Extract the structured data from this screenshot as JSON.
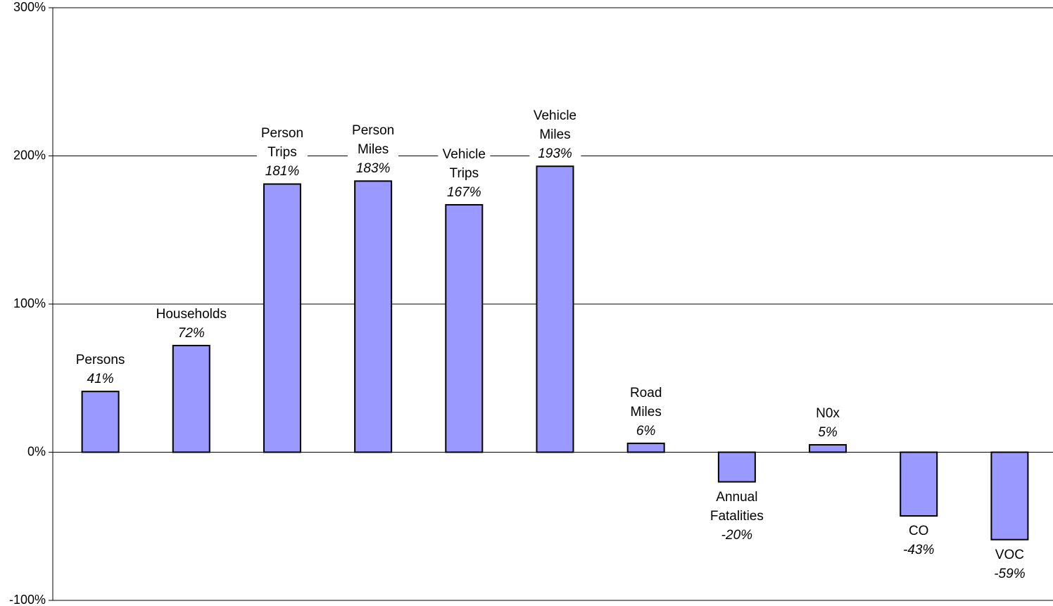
{
  "chart_data": {
    "type": "bar",
    "categories": [
      "Persons",
      "Households",
      "Person\nTrips",
      "Person\nMiles",
      "Vehicle\nTrips",
      "Vehicle\nMiles",
      "Road\nMiles",
      "Annual\nFatalities",
      "N0x",
      "CO",
      "VOC"
    ],
    "values": [
      41,
      72,
      181,
      183,
      167,
      193,
      6,
      -20,
      5,
      -43,
      -59
    ],
    "value_labels": [
      "41%",
      "72%",
      "181%",
      "183%",
      "167%",
      "193%",
      "6%",
      "-20%",
      "5%",
      "-43%",
      "-59%"
    ],
    "color": "#9999ff",
    "ylim": [
      -100,
      300
    ],
    "yticks": [
      {
        "value": -100,
        "label": "-100%"
      },
      {
        "value": 0,
        "label": "0%"
      },
      {
        "value": 100,
        "label": "100%"
      },
      {
        "value": 200,
        "label": "200%"
      },
      {
        "value": 300,
        "label": "300%"
      }
    ],
    "grid": true
  }
}
